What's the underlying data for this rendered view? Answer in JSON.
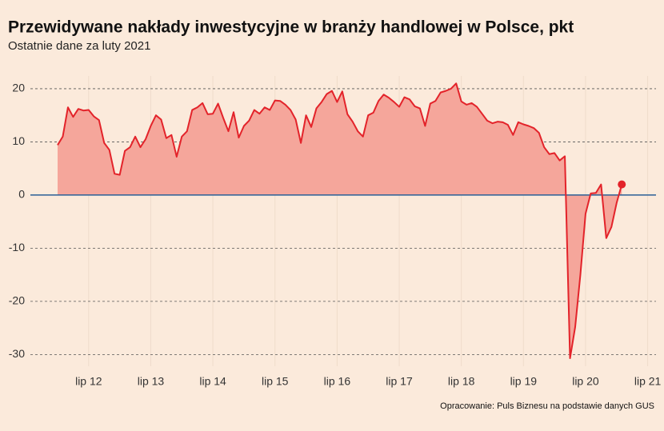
{
  "chart_data": {
    "type": "area",
    "title": "Przewidywane nakłady inwestycyjne w branży handlowej w Polsce, pkt",
    "subtitle": "Ostatnie dane za luty 2021",
    "source": "Opracowanie: Puls Biznesu na podstawie danych GUS",
    "categories": [
      null,
      null,
      null,
      null,
      null,
      null,
      "lip 12",
      null,
      null,
      null,
      null,
      null,
      null,
      null,
      null,
      null,
      null,
      null,
      "lip 13",
      null,
      null,
      null,
      null,
      null,
      null,
      null,
      null,
      null,
      null,
      null,
      "lip 14",
      null,
      null,
      null,
      null,
      null,
      null,
      null,
      null,
      null,
      null,
      null,
      "lip 15",
      null,
      null,
      null,
      null,
      null,
      null,
      null,
      null,
      null,
      null,
      null,
      "lip 16",
      null,
      null,
      null,
      null,
      null,
      null,
      null,
      null,
      null,
      null,
      null,
      "lip 17",
      null,
      null,
      null,
      null,
      null,
      null,
      null,
      null,
      null,
      null,
      null,
      "lip 18",
      null,
      null,
      null,
      null,
      null,
      null,
      null,
      null,
      null,
      null,
      null,
      "lip 19",
      null,
      null,
      null,
      null,
      null,
      null,
      null,
      null,
      null,
      null,
      null,
      "lip 20",
      null,
      null,
      null,
      null,
      null,
      null,
      null,
      null,
      null,
      null,
      null,
      "lip 21"
    ],
    "series": [
      {
        "color": "#e3232a",
        "fill": "#f5a69b",
        "values": [
          9.4,
          11,
          16.5,
          14.7,
          16.2,
          15.9,
          16,
          14.8,
          14.1,
          9.8,
          8.5,
          4,
          3.8,
          8.3,
          9,
          11,
          9,
          10.5,
          13,
          15,
          14.2,
          10.7,
          11.3,
          7.2,
          11,
          12,
          16,
          16.5,
          17.3,
          15.2,
          15.3,
          17.2,
          14.5,
          12,
          15.6,
          10.8,
          13,
          14,
          16,
          15.3,
          16.5,
          16,
          17.8,
          17.7,
          17,
          16,
          14.2,
          9.8,
          15,
          12.8,
          16.3,
          17.5,
          19,
          19.6,
          17.5,
          19.5,
          15.2,
          13.8,
          12,
          11,
          15,
          15.5,
          17.7,
          18.9,
          18.3,
          17.5,
          16.6,
          18.4,
          18,
          16.7,
          16.3,
          13,
          17.2,
          17.7,
          19.3,
          19.6,
          20,
          21,
          17.6,
          17,
          17.3,
          16.6,
          15.3,
          14,
          13.5,
          13.8,
          13.7,
          13.2,
          11.3,
          13.7,
          13.3,
          13,
          12.6,
          11.7,
          9,
          7.7,
          7.9,
          6.5,
          7.3,
          -30.7,
          -24.8,
          -15,
          -3.5,
          0.3,
          0.4,
          2,
          -8.1,
          -6,
          -1.5,
          2,
          null,
          null,
          null,
          null,
          null
        ]
      }
    ],
    "ylim": [
      -32.2,
      22.4
    ],
    "yticks": [
      -30,
      -20,
      -10,
      0,
      10,
      20
    ],
    "grid": true,
    "zero_line_color": "#2a5f96",
    "end_marker": true
  }
}
